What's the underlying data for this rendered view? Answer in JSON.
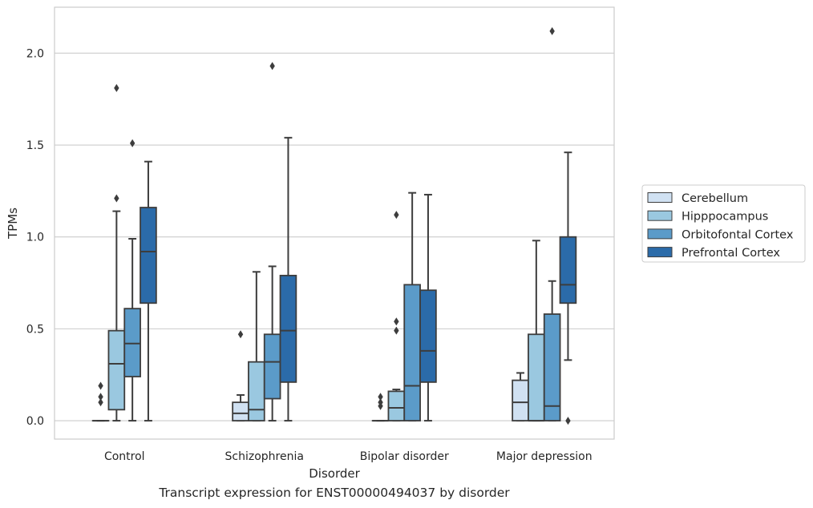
{
  "caption": "Transcript expression for ENST00000494037 by disorder",
  "chart_data": {
    "type": "box",
    "title": "",
    "xlabel": "Disorder",
    "ylabel": "TPMs",
    "ylim": [
      -0.1,
      2.25
    ],
    "yticks": [
      0.0,
      0.5,
      1.0,
      1.5,
      2.0
    ],
    "ytick_labels": [
      "0.0",
      "0.5",
      "1.0",
      "1.5",
      "2.0"
    ],
    "grid": "horizontal",
    "legend_position": "right",
    "categories": [
      "Control",
      "Schizophrenia",
      "Bipolar disorder",
      "Major depression"
    ],
    "series": [
      {
        "name": "Cerebellum",
        "color": "#d0e1f2",
        "boxes": [
          {
            "q1": 0.0,
            "median": 0.0,
            "q3": 0.0,
            "whisker_low": 0.0,
            "whisker_high": 0.0,
            "outliers": [
              0.1,
              0.13,
              0.19
            ]
          },
          {
            "q1": 0.0,
            "median": 0.04,
            "q3": 0.1,
            "whisker_low": 0.0,
            "whisker_high": 0.14,
            "outliers": [
              0.47
            ]
          },
          {
            "q1": 0.0,
            "median": 0.0,
            "q3": 0.0,
            "whisker_low": 0.0,
            "whisker_high": 0.0,
            "outliers": [
              0.08,
              0.1,
              0.13
            ]
          },
          {
            "q1": 0.0,
            "median": 0.1,
            "q3": 0.22,
            "whisker_low": 0.0,
            "whisker_high": 0.26,
            "outliers": []
          }
        ]
      },
      {
        "name": "Hipppocampus",
        "color": "#9ac8e0",
        "boxes": [
          {
            "q1": 0.06,
            "median": 0.31,
            "q3": 0.49,
            "whisker_low": 0.0,
            "whisker_high": 1.14,
            "outliers": [
              1.21,
              1.81
            ]
          },
          {
            "q1": 0.0,
            "median": 0.06,
            "q3": 0.32,
            "whisker_low": 0.0,
            "whisker_high": 0.81,
            "outliers": []
          },
          {
            "q1": 0.0,
            "median": 0.07,
            "q3": 0.16,
            "whisker_low": 0.0,
            "whisker_high": 0.17,
            "outliers": [
              0.49,
              0.54,
              1.12
            ]
          },
          {
            "q1": 0.0,
            "median": 0.0,
            "q3": 0.47,
            "whisker_low": 0.0,
            "whisker_high": 0.98,
            "outliers": []
          }
        ]
      },
      {
        "name": "Orbitofontal Cortex",
        "color": "#5b9bc9",
        "boxes": [
          {
            "q1": 0.24,
            "median": 0.42,
            "q3": 0.61,
            "whisker_low": 0.0,
            "whisker_high": 0.99,
            "outliers": [
              1.51
            ]
          },
          {
            "q1": 0.12,
            "median": 0.32,
            "q3": 0.47,
            "whisker_low": 0.0,
            "whisker_high": 0.84,
            "outliers": [
              1.93
            ]
          },
          {
            "q1": 0.0,
            "median": 0.19,
            "q3": 0.74,
            "whisker_low": 0.0,
            "whisker_high": 1.24,
            "outliers": []
          },
          {
            "q1": 0.0,
            "median": 0.08,
            "q3": 0.58,
            "whisker_low": 0.0,
            "whisker_high": 0.76,
            "outliers": [
              2.12
            ]
          }
        ]
      },
      {
        "name": "Prefrontal Cortex",
        "color": "#2b6ba9",
        "boxes": [
          {
            "q1": 0.64,
            "median": 0.92,
            "q3": 1.16,
            "whisker_low": 0.0,
            "whisker_high": 1.41,
            "outliers": []
          },
          {
            "q1": 0.21,
            "median": 0.49,
            "q3": 0.79,
            "whisker_low": 0.0,
            "whisker_high": 1.54,
            "outliers": []
          },
          {
            "q1": 0.21,
            "median": 0.38,
            "q3": 0.71,
            "whisker_low": 0.0,
            "whisker_high": 1.23,
            "outliers": []
          },
          {
            "q1": 0.64,
            "median": 0.74,
            "q3": 1.0,
            "whisker_low": 0.33,
            "whisker_high": 1.46,
            "outliers": [
              0.0
            ]
          }
        ]
      }
    ]
  }
}
